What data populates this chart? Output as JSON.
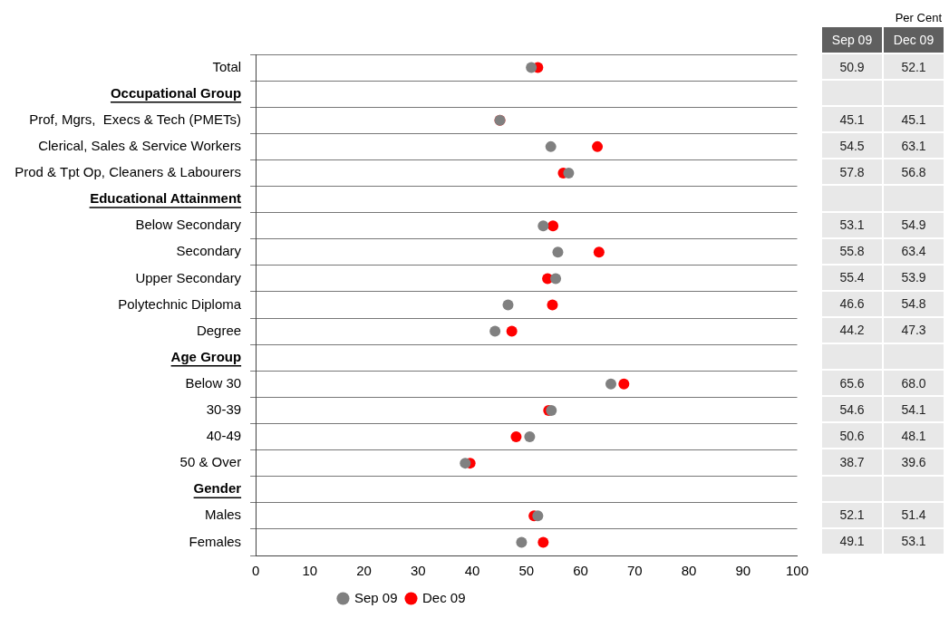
{
  "chart_data": {
    "type": "scatter",
    "orientation": "horizontal",
    "categories": [
      "Total",
      "Occupational Group",
      "Prof, Mgrs,  Execs & Tech (PMETs)",
      "Clerical, Sales & Service Workers",
      "Prod & Tpt Op, Cleaners & Labourers",
      "Educational Attainment",
      "Below Secondary",
      "Secondary",
      "Upper Secondary",
      "Polytechnic Diploma",
      "Degree",
      "Age Group",
      "Below 30",
      "30-39",
      "40-49",
      "50 & Over",
      "Gender",
      "Males",
      "Females"
    ],
    "series": [
      {
        "name": "Sep 09",
        "color": "#808080",
        "values": [
          50.9,
          null,
          45.1,
          54.5,
          57.8,
          null,
          53.1,
          55.8,
          55.4,
          46.6,
          44.2,
          null,
          65.6,
          54.6,
          50.6,
          38.7,
          null,
          52.1,
          49.1
        ],
        "value_labels": [
          "50.9",
          null,
          "45.1",
          "54.5",
          "57.8",
          null,
          "53.1",
          "55.8",
          "55.4",
          "46.6",
          "44.2",
          null,
          "65.6",
          "54.6",
          "50.6",
          "38.7",
          null,
          "52.1",
          "49.1"
        ]
      },
      {
        "name": "Dec 09",
        "color": "#ff0000",
        "values": [
          52.1,
          null,
          45.1,
          63.1,
          56.8,
          null,
          54.9,
          63.4,
          53.9,
          54.8,
          47.3,
          null,
          68.0,
          54.1,
          48.1,
          39.6,
          null,
          51.4,
          53.1
        ],
        "value_labels": [
          "52.1",
          null,
          "45.1",
          "63.1",
          "56.8",
          null,
          "54.9",
          "63.4",
          "53.9",
          "54.8",
          "47.3",
          null,
          "68.0",
          "54.1",
          "48.1",
          "39.6",
          null,
          "51.4",
          "53.1"
        ]
      }
    ],
    "xlim": [
      0,
      100
    ],
    "xticks": [
      0,
      10,
      20,
      30,
      40,
      50,
      60,
      70,
      80,
      90,
      100
    ],
    "grid": "y",
    "legend": "bottom",
    "marker": "circle",
    "annotations": [
      "Per Cent"
    ]
  }
}
